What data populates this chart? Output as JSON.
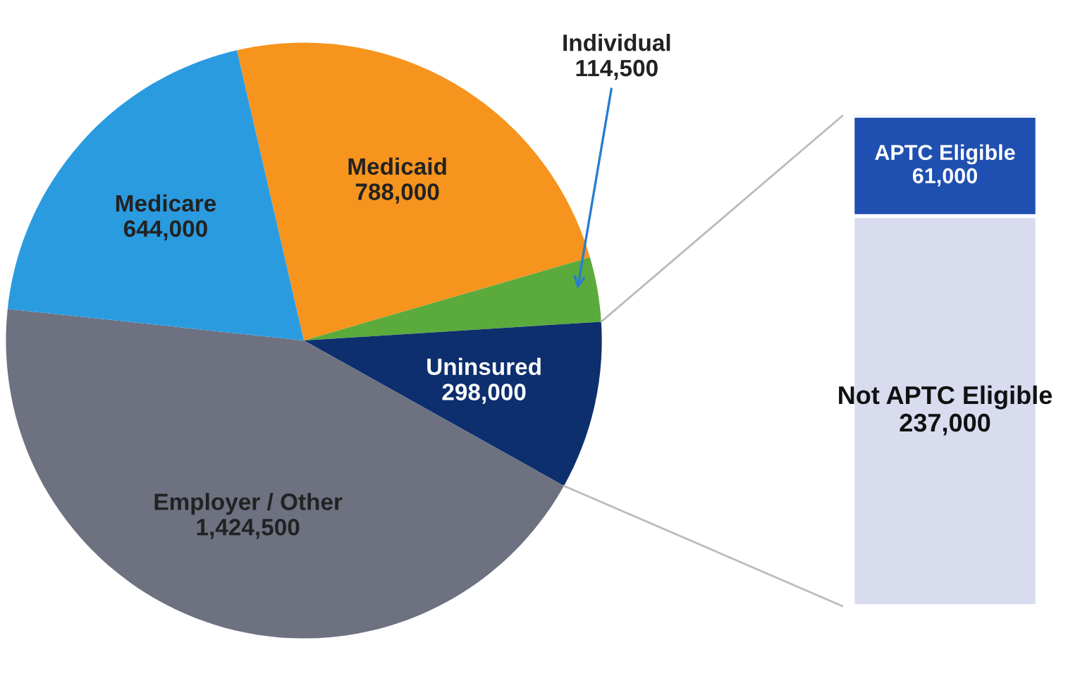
{
  "chart_data": [
    {
      "type": "pie",
      "categories": [
        "Medicaid",
        "Individual",
        "Uninsured",
        "Employer / Other",
        "Medicare"
      ],
      "values": [
        788000,
        114500,
        298000,
        1424500,
        644000
      ],
      "value_labels": [
        "788,000",
        "114,500",
        "298,000",
        "1,424,500",
        "644,000"
      ],
      "colors": [
        "#f7941d",
        "#5aab3c",
        "#0d2f6e",
        "#6d7180",
        "#2b9be0"
      ]
    },
    {
      "type": "bar",
      "stacked": true,
      "categories": [
        null
      ],
      "data_labels": true,
      "series": [
        {
          "name": "Not APTC Eligible",
          "color": "#d9dcef",
          "values": [
            237000
          ],
          "value_labels": [
            "237,000"
          ]
        },
        {
          "name": "APTC Eligible",
          "color": "#1f4fb0",
          "values": [
            61000
          ],
          "value_labels": [
            "61,000"
          ]
        }
      ]
    }
  ]
}
